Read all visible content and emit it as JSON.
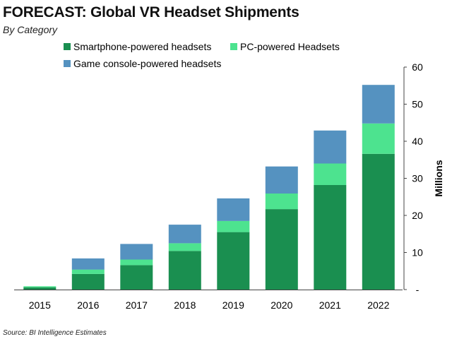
{
  "chart_data": {
    "type": "bar",
    "stacked": true,
    "title": "FORECAST: Global VR Headset Shipments",
    "subtitle": "By Category",
    "source": "Source: BI Intelligence Estimates",
    "ylabel": "Millions",
    "ylim": [
      0,
      60
    ],
    "yticks": [
      "-",
      "10",
      "20",
      "30",
      "40",
      "50",
      "60"
    ],
    "categories": [
      "2015",
      "2016",
      "2017",
      "2018",
      "2019",
      "2020",
      "2021",
      "2022"
    ],
    "series": [
      {
        "name": "Smartphone-powered headsets",
        "color": "#1a8f50",
        "values": [
          0.6,
          4.2,
          6.6,
          10.4,
          15.5,
          21.7,
          28.2,
          36.6
        ]
      },
      {
        "name": "PC-powered Headsets",
        "color": "#4de38f",
        "values": [
          0.3,
          1.2,
          1.5,
          2.1,
          3.0,
          4.2,
          5.8,
          8.2
        ]
      },
      {
        "name": "Game console-powered headsets",
        "color": "#5592c0",
        "values": [
          0.0,
          3.0,
          4.2,
          5.0,
          6.1,
          7.3,
          8.9,
          10.4
        ]
      }
    ],
    "legend_position": "top-left",
    "grid": false
  }
}
